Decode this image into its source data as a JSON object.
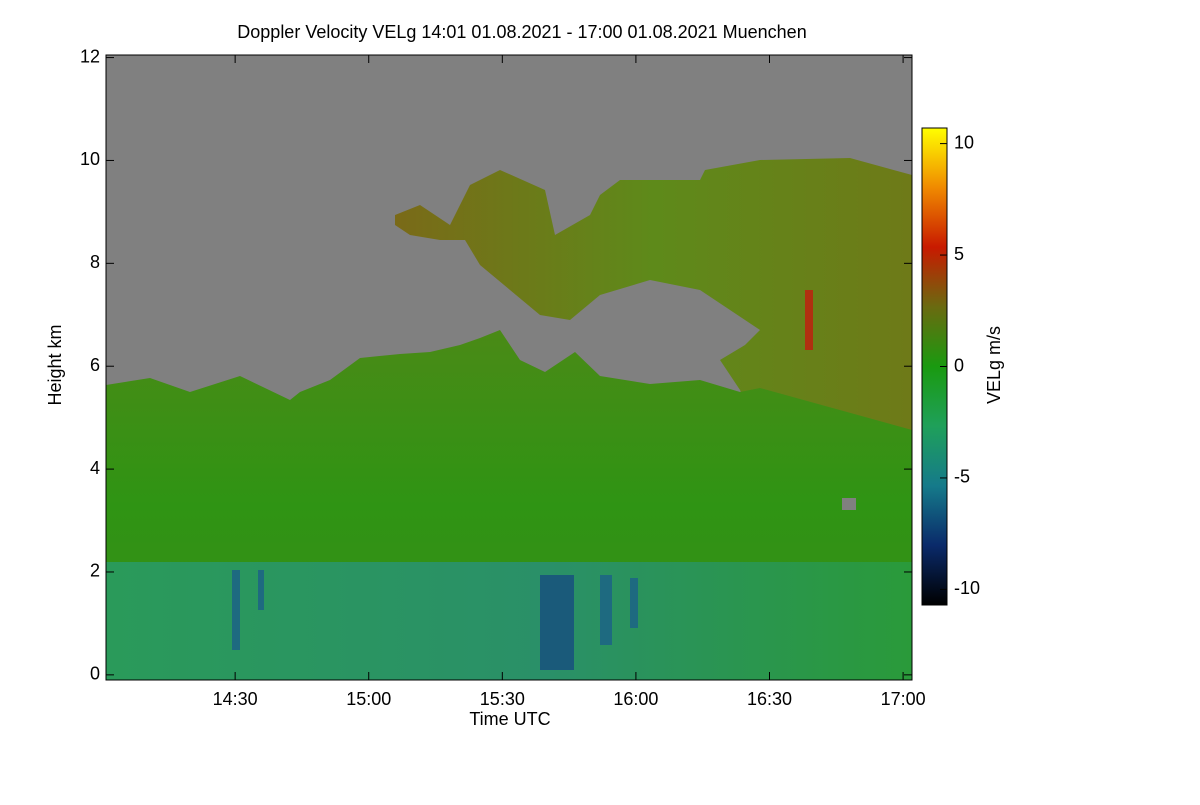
{
  "chart_data": {
    "type": "heatmap",
    "title": "Doppler Velocity VELg   14:01 01.08.2021 - 17:00 01.08.2021 Muenchen",
    "x_label": "Time UTC",
    "y_label": "Height km",
    "colorbar_label": "VELg m/s",
    "xlim": [
      841,
      1022
    ],
    "xticks": [
      {
        "value": 870,
        "label": "14:30"
      },
      {
        "value": 900,
        "label": "15:00"
      },
      {
        "value": 930,
        "label": "15:30"
      },
      {
        "value": 960,
        "label": "16:00"
      },
      {
        "value": 990,
        "label": "16:30"
      },
      {
        "value": 1020,
        "label": "17:00"
      }
    ],
    "ylim": [
      -0.1,
      12.05
    ],
    "yticks": [
      0,
      2,
      4,
      6,
      8,
      10,
      12
    ],
    "clim": [
      -10.7,
      10.7
    ],
    "cticks": [
      -10,
      -5,
      0,
      5,
      10
    ],
    "colormap": [
      "#000000",
      "#0a2a6a",
      "#157a8a",
      "#1fa05a",
      "#1a9a10",
      "#6a6a10",
      "#c81a00",
      "#f08a00",
      "#ffff00"
    ]
  }
}
